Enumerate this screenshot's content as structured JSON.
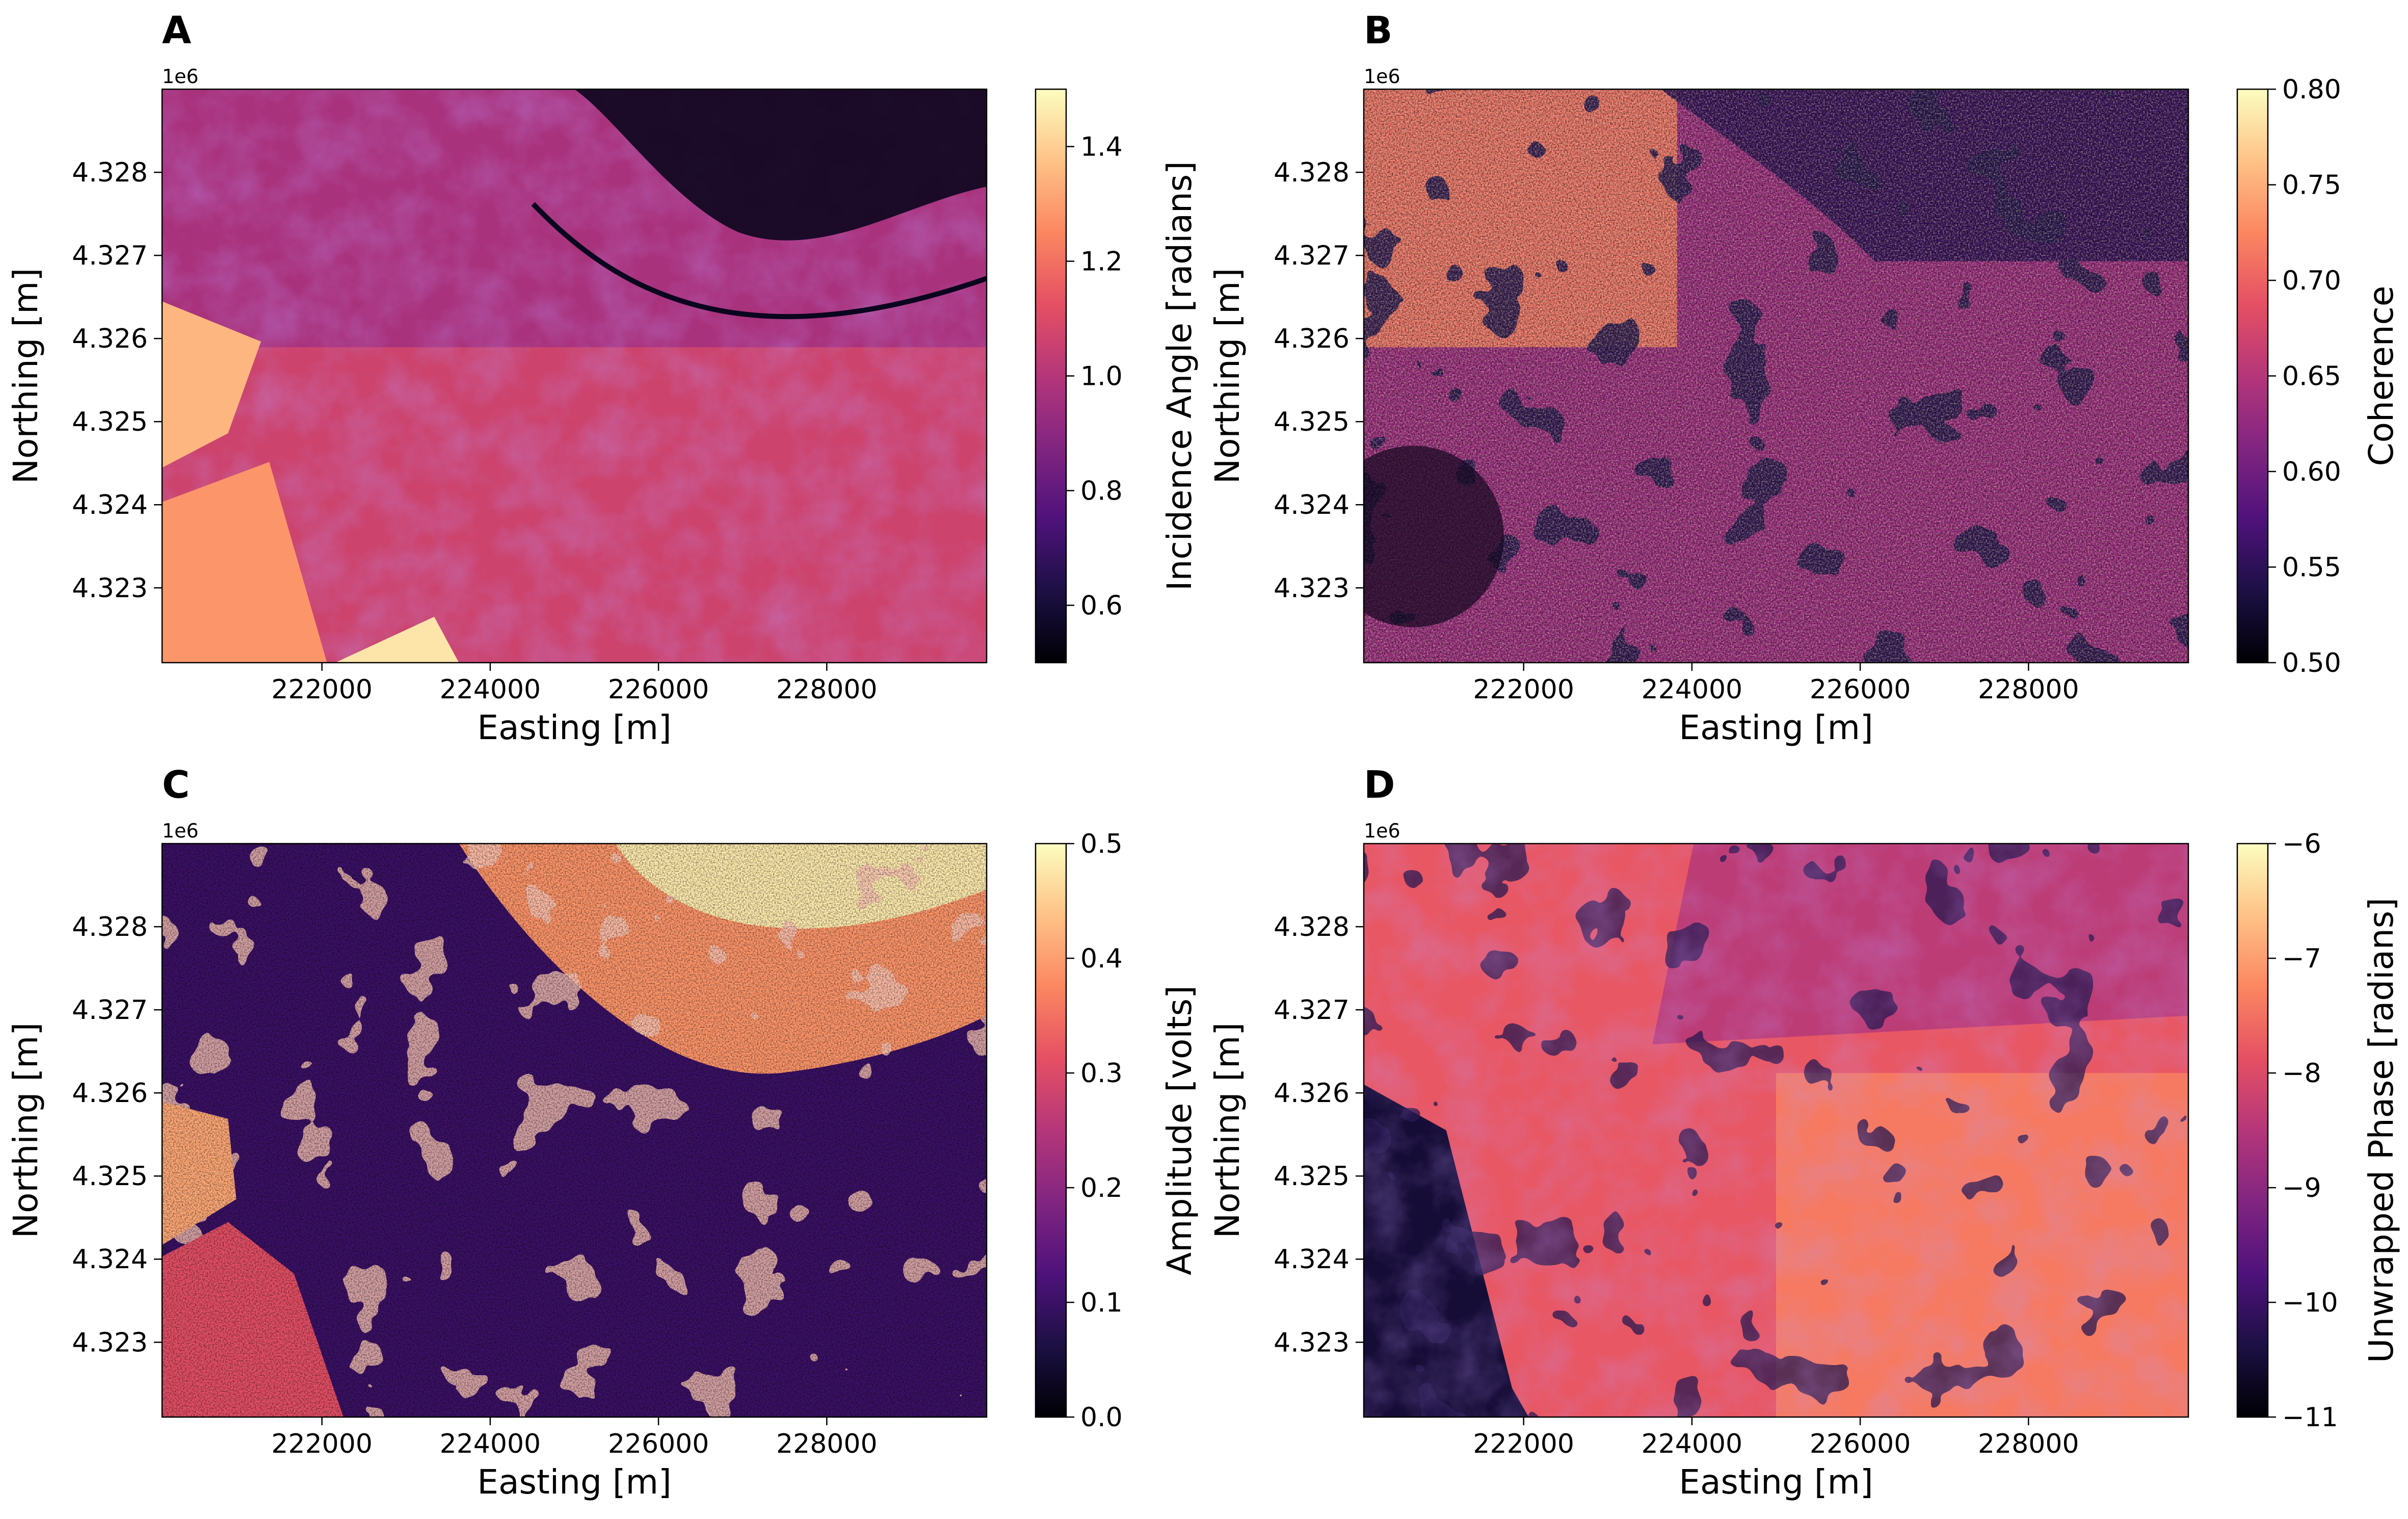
{
  "colormap": {
    "name": "magma",
    "stops": [
      "#000004",
      "#1c1044",
      "#4f127b",
      "#812581",
      "#b5367a",
      "#e55064",
      "#fb8761",
      "#fec287",
      "#fcfdbf"
    ]
  },
  "chart_data": [
    {
      "type": "heatmap",
      "panel_label": "A",
      "title": "",
      "xlabel": "Easting [m]",
      "ylabel": "Northing [m]",
      "xlim": [
        220100,
        229900
      ],
      "ylim": [
        4322100,
        4329000
      ],
      "x_ticks": [
        222000,
        224000,
        226000,
        228000
      ],
      "x_tick_labels": [
        "222000",
        "224000",
        "226000",
        "228000"
      ],
      "y_ticks": [
        4323000,
        4324000,
        4325000,
        4326000,
        4327000,
        4328000
      ],
      "y_tick_labels": [
        "4.323",
        "4.324",
        "4.325",
        "4.326",
        "4.327",
        "4.328"
      ],
      "y_offset_label": "1e6",
      "colorbar": {
        "label": "Incidence Angle [radians]",
        "vmin": 0.5,
        "vmax": 1.5,
        "ticks": [
          0.6,
          0.8,
          1.0,
          1.2,
          1.4
        ],
        "tick_labels": [
          "0.6",
          "0.8",
          "1.0",
          "1.2",
          "1.4"
        ]
      },
      "description_values": {
        "dominant_value": 1.05,
        "dark_northeast_value": 0.55
      }
    },
    {
      "type": "heatmap",
      "panel_label": "B",
      "title": "",
      "xlabel": "Easting [m]",
      "ylabel": "Northing [m]",
      "xlim": [
        220100,
        229900
      ],
      "ylim": [
        4322100,
        4329000
      ],
      "x_ticks": [
        222000,
        224000,
        226000,
        228000
      ],
      "x_tick_labels": [
        "222000",
        "224000",
        "226000",
        "228000"
      ],
      "y_ticks": [
        4323000,
        4324000,
        4325000,
        4326000,
        4327000,
        4328000
      ],
      "y_tick_labels": [
        "4.323",
        "4.324",
        "4.325",
        "4.326",
        "4.327",
        "4.328"
      ],
      "y_offset_label": "1e6",
      "colorbar": {
        "label": "Coherence",
        "vmin": 0.5,
        "vmax": 0.8,
        "ticks": [
          0.5,
          0.55,
          0.6,
          0.65,
          0.7,
          0.75,
          0.8
        ],
        "tick_labels": [
          "0.50",
          "0.55",
          "0.60",
          "0.65",
          "0.70",
          "0.75",
          "0.80"
        ]
      },
      "description_values": {
        "west_value": 0.72,
        "east_value": 0.55
      }
    },
    {
      "type": "heatmap",
      "panel_label": "C",
      "title": "",
      "xlabel": "Easting [m]",
      "ylabel": "Northing [m]",
      "xlim": [
        220100,
        229900
      ],
      "ylim": [
        4322100,
        4329000
      ],
      "x_ticks": [
        222000,
        224000,
        226000,
        228000
      ],
      "x_tick_labels": [
        "222000",
        "224000",
        "226000",
        "228000"
      ],
      "y_ticks": [
        4323000,
        4324000,
        4325000,
        4326000,
        4327000,
        4328000
      ],
      "y_tick_labels": [
        "4.323",
        "4.324",
        "4.325",
        "4.326",
        "4.327",
        "4.328"
      ],
      "y_offset_label": "1e6",
      "colorbar": {
        "label": "Amplitude [volts]",
        "vmin": 0.0,
        "vmax": 0.5,
        "ticks": [
          0.0,
          0.1,
          0.2,
          0.3,
          0.4,
          0.5
        ],
        "tick_labels": [
          "0.0",
          "0.1",
          "0.2",
          "0.3",
          "0.4",
          "0.5"
        ]
      },
      "description_values": {
        "background_value": 0.1,
        "bright_north_value": 0.48
      }
    },
    {
      "type": "heatmap",
      "panel_label": "D",
      "title": "",
      "xlabel": "Easting [m]",
      "ylabel": "Northing [m]",
      "xlim": [
        220100,
        229900
      ],
      "ylim": [
        4322100,
        4329000
      ],
      "x_ticks": [
        222000,
        224000,
        226000,
        228000
      ],
      "x_tick_labels": [
        "222000",
        "224000",
        "226000",
        "228000"
      ],
      "y_ticks": [
        4323000,
        4324000,
        4325000,
        4326000,
        4327000,
        4328000
      ],
      "y_tick_labels": [
        "4.323",
        "4.324",
        "4.325",
        "4.326",
        "4.327",
        "4.328"
      ],
      "y_offset_label": "1e6",
      "colorbar": {
        "label": "Unwrapped Phase [radians]",
        "vmin": -11,
        "vmax": -6,
        "ticks": [
          -11,
          -10,
          -9,
          -8,
          -7,
          -6
        ],
        "tick_labels": [
          "−11",
          "−10",
          "−9",
          "−8",
          "−7",
          "−6"
        ]
      },
      "description_values": {
        "dominant_value": -7.8,
        "low_value": -10.5
      }
    }
  ]
}
